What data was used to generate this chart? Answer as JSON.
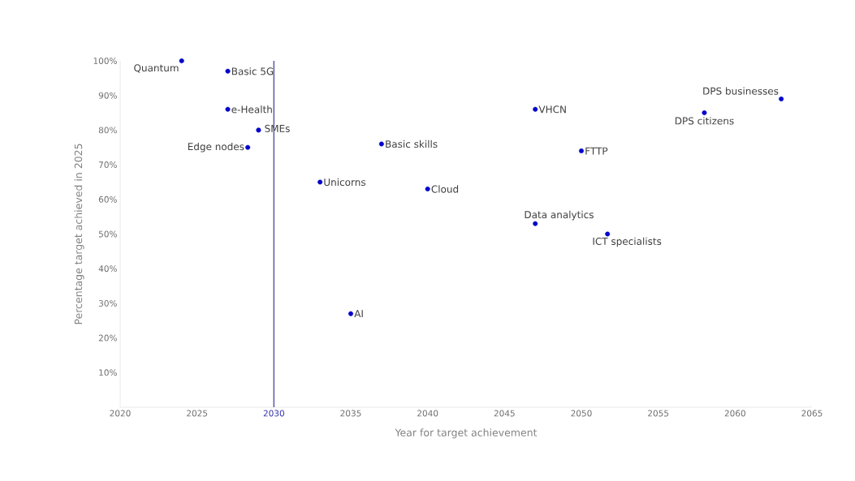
{
  "chart_data": {
    "type": "scatter",
    "xlabel": "Year for target achievement",
    "ylabel": "Percentage target achieved in 2025",
    "x": [
      2024,
      2027,
      2027,
      2029,
      2028.3,
      2033,
      2035,
      2037,
      2040,
      2047,
      2050,
      2047,
      2051.7,
      2058,
      2063
    ],
    "series": [
      {
        "color": "#0000cc",
        "values": [
          100,
          97,
          86,
          80,
          75,
          65,
          27,
          76,
          63,
          86,
          74,
          53,
          50,
          85,
          89
        ]
      }
    ],
    "annotations": [
      {
        "text": "Quantum",
        "x": 2024,
        "y": 100
      },
      {
        "text": "Basic 5G",
        "x": 2027,
        "y": 97
      },
      {
        "text": "e-Health",
        "x": 2027,
        "y": 86
      },
      {
        "text": "SMEs",
        "x": 2029,
        "y": 80
      },
      {
        "text": "Edge nodes",
        "x": 2028.3,
        "y": 75
      },
      {
        "text": "Unicorns",
        "x": 2033,
        "y": 65
      },
      {
        "text": "AI",
        "x": 2035,
        "y": 27
      },
      {
        "text": "Basic skills",
        "x": 2037,
        "y": 76
      },
      {
        "text": "Cloud",
        "x": 2040,
        "y": 63
      },
      {
        "text": "VHCN",
        "x": 2047,
        "y": 86
      },
      {
        "text": "FTTP",
        "x": 2050,
        "y": 74
      },
      {
        "text": "Data analytics",
        "x": 2047,
        "y": 53
      },
      {
        "text": "ICT specialists",
        "x": 2051.7,
        "y": 50
      },
      {
        "text": "DPS citizens",
        "x": 2058,
        "y": 85
      },
      {
        "text": "DPS businesses",
        "x": 2063,
        "y": 89
      }
    ],
    "xlim": [
      2020,
      2065
    ],
    "xticks": [
      2020,
      2025,
      2030,
      2035,
      2040,
      2045,
      2050,
      2055,
      2060,
      2065
    ],
    "ylim": [
      0,
      100
    ],
    "yticks": [
      {
        "value": 10,
        "label": "10%"
      },
      {
        "value": 20,
        "label": "20%"
      },
      {
        "value": 30,
        "label": "30%"
      },
      {
        "value": 40,
        "label": "40%"
      },
      {
        "value": 50,
        "label": "50%"
      },
      {
        "value": 60,
        "label": "60%"
      },
      {
        "value": 70,
        "label": "70%"
      },
      {
        "value": 80,
        "label": "80%"
      },
      {
        "value": 90,
        "label": "90%"
      },
      {
        "value": 100,
        "label": "100%"
      }
    ],
    "ref_lines": [
      {
        "axis": "x",
        "value": 2030,
        "color": "#5a5aa8"
      }
    ]
  }
}
